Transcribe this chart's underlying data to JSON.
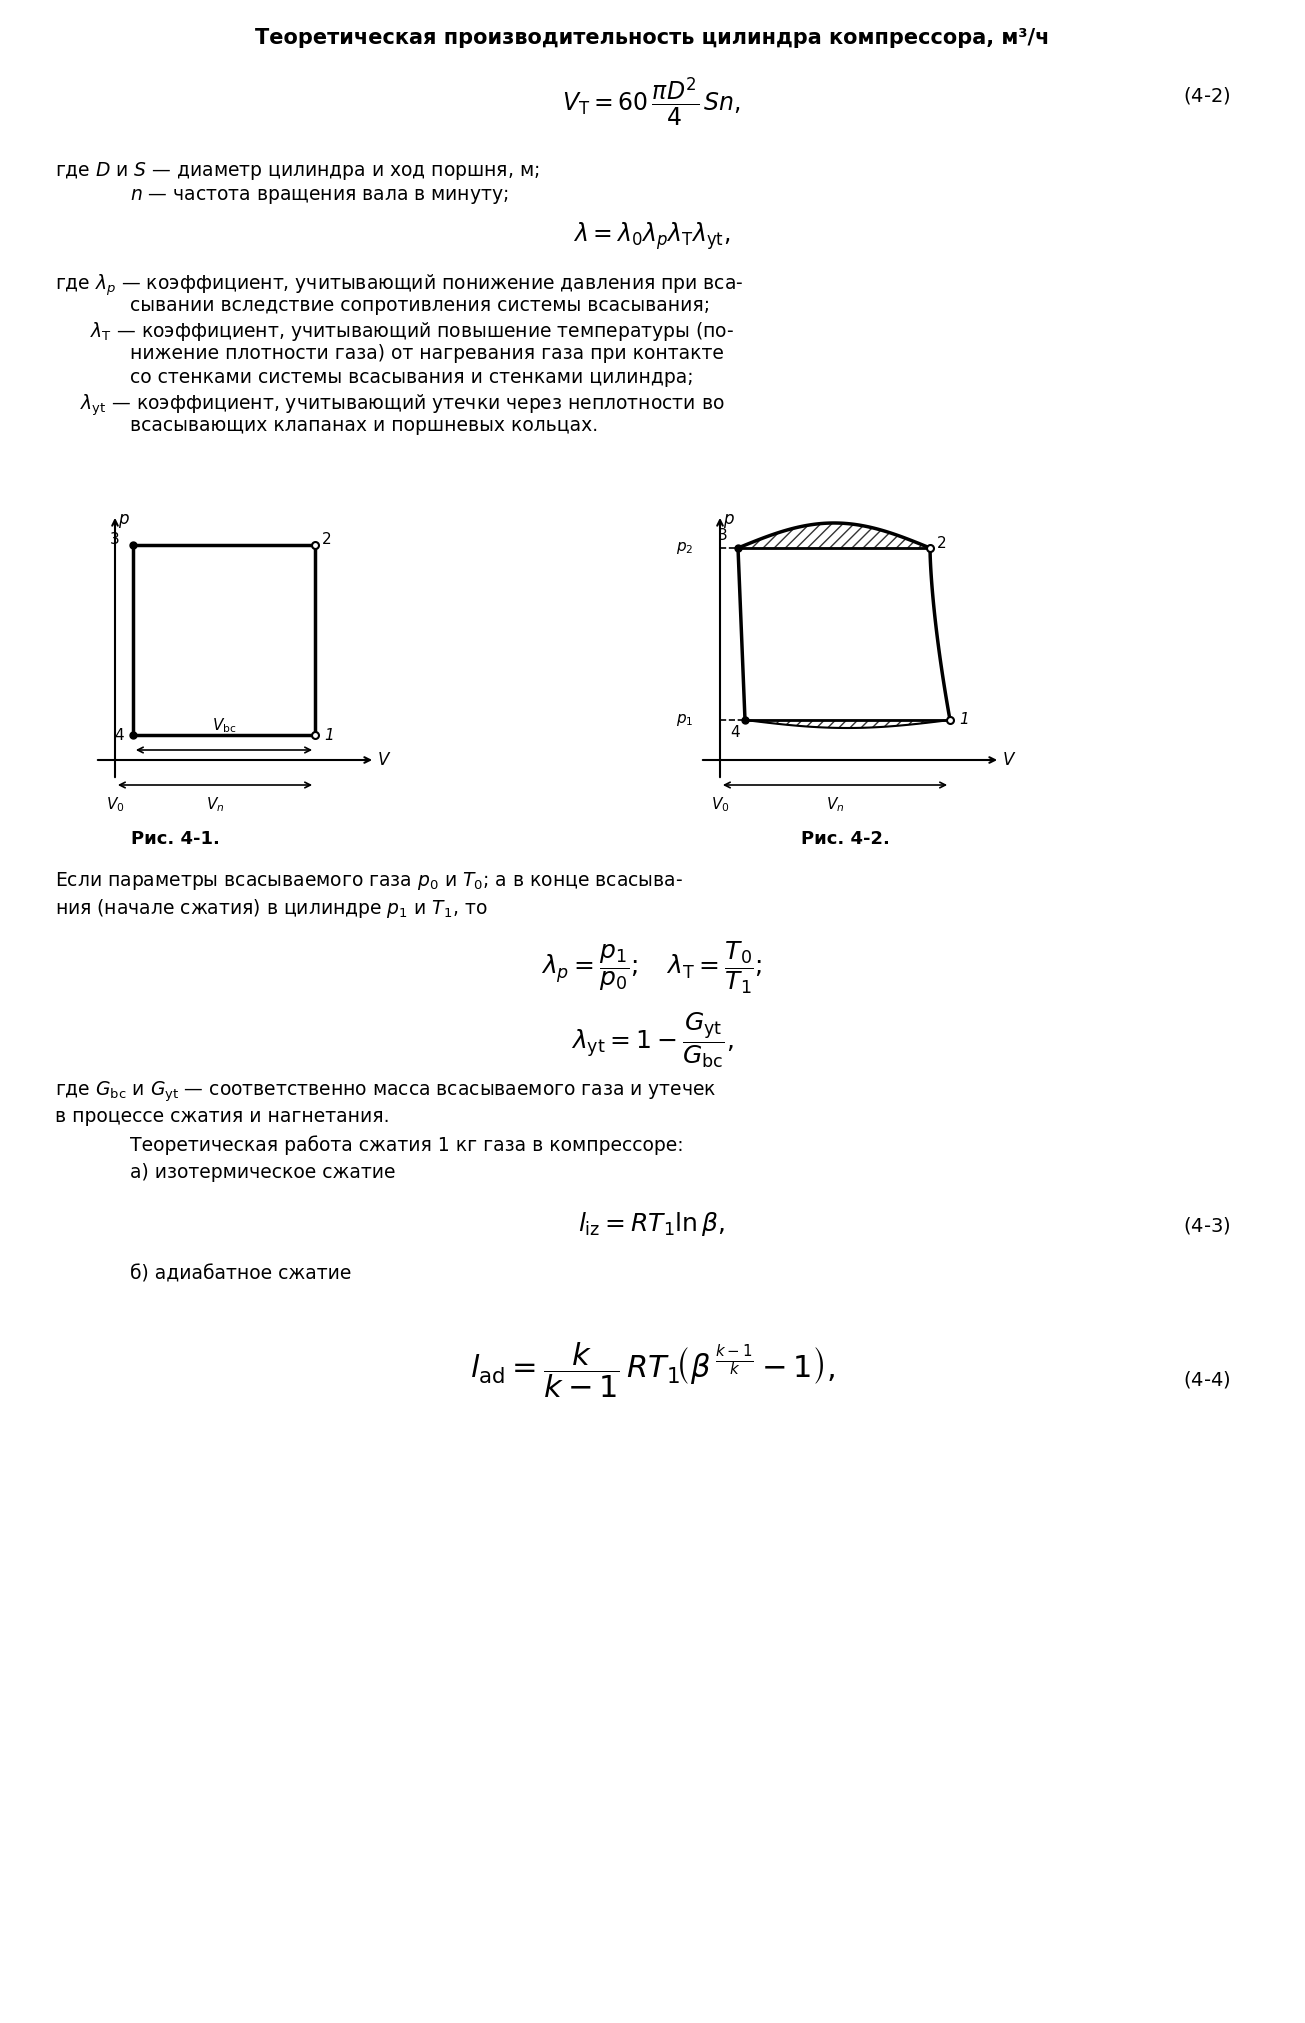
{
  "title": "Теоретическая производительность цилиндра компрессора, м³/ч",
  "formula1": "$V_{\\mathrm{T}} = 60\\,\\dfrac{\\pi D^2}{4}\\,Sn,$",
  "formula1_num": "(4-2)",
  "text1": "где $D$ и $S$ — диаметр цилиндра и ход поршня, м;",
  "text2": "$n$ — частота вращения вала в минуту;",
  "formula2": "$\\lambda = \\lambda_0 \\lambda_p \\lambda_\\mathrm{T} \\lambda_\\mathrm{yt},$",
  "text3a": "где $\\lambda_p$ — коэффициент, учитывающий понижение давления при вса-",
  "text3b": "сывании вследствие сопротивления системы всасывания;",
  "text4a": "$\\lambda_\\mathrm{T}$ — коэффициент, учитывающий повышение температуры (по-",
  "text4b": "нижение плотности газа) от нагревания газа при контакте",
  "text4c": "со стенками системы всасывания и стенками цилиндра;",
  "text5a": "$\\lambda_{\\mathrm{yt}}$ — коэффициент, учитывающий утечки через неплотности во",
  "text5b": "всасывающих клапанах и поршневых кольцах.",
  "fig1_caption": "Рис. 4-1.",
  "fig2_caption": "Рис. 4-2.",
  "text6a": "Если параметры всасываемого газа $p_0$ и $T_0$; а в конце всасыва-",
  "text6b": "ния (начале сжатия) в цилиндре $p_1$ и $T_1$, то",
  "formula3a": "$\\lambda_p = \\dfrac{p_1}{p_0};\\quad \\lambda_\\mathrm{T} = \\dfrac{T_0}{T_1};$",
  "formula3b": "$\\lambda_\\mathrm{yt} = 1 - \\dfrac{G_\\mathrm{yt}}{G_\\mathrm{bc}},$",
  "text7": "где $G_\\mathrm{bc}$ и $G_\\mathrm{yt}$ — соответственно масса всасываемого газа и утечек",
  "text8": "в процессе сжатия и нагнетания.",
  "text9": "Теоретическая работа сжатия 1 кг газа в компрессоре:",
  "text10": "а) изотермическое сжатие",
  "formula4": "$l_{\\mathrm{iz}} = RT_1 \\ln \\beta,$",
  "formula4_num": "(4-3)",
  "text11": "б) адиабатное сжатие",
  "formula5": "$l_{\\mathrm{ad}} = \\dfrac{k}{k-1}\\,RT_{1}\\!\\left(\\beta^{\\frac{k-1}{k}} - 1\\right),$",
  "formula5_num": "(4-4)"
}
